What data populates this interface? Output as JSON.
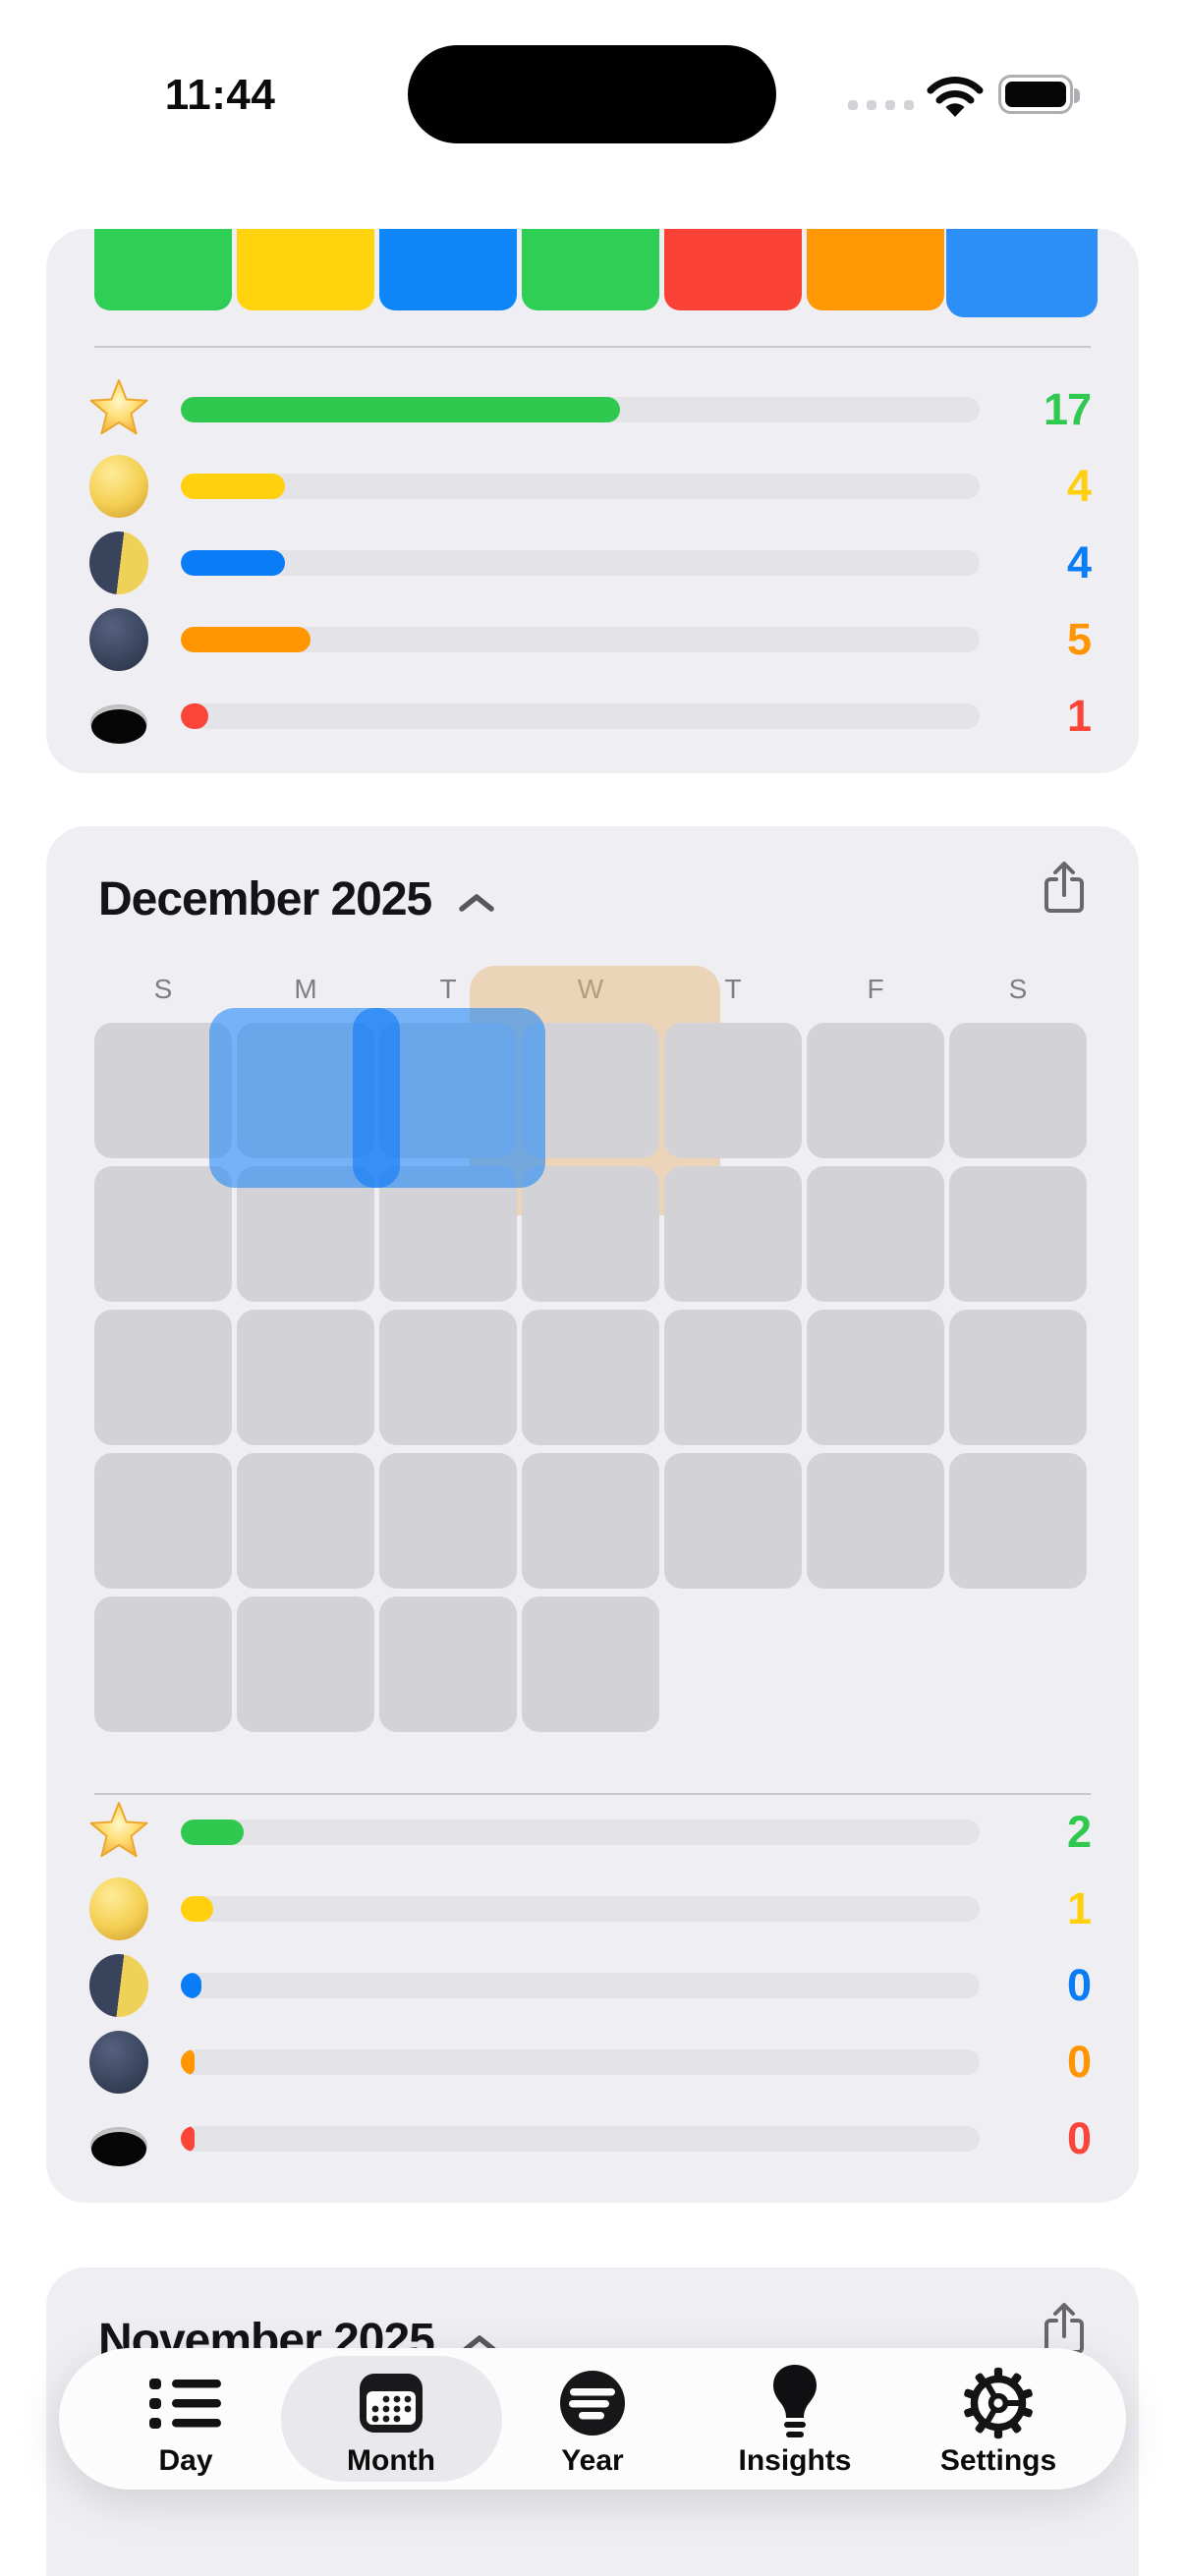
{
  "status_bar": {
    "time": "11:44"
  },
  "top_card": {
    "cell_colors": [
      "#2FCE55",
      "#FFD40E",
      "#0F86F8",
      "#2FCE55",
      "#FB4237",
      "#FF9803",
      "#2B8FF7"
    ],
    "stats": [
      {
        "icon": "star",
        "value": "17",
        "fraction": 0.55,
        "color": "#2FC94F"
      },
      {
        "icon": "full-moon",
        "value": "4",
        "fraction": 0.13,
        "color": "#FFD00D"
      },
      {
        "icon": "first-quarter-moon",
        "value": "4",
        "fraction": 0.13,
        "color": "#0A7CF6"
      },
      {
        "icon": "new-moon",
        "value": "5",
        "fraction": 0.162,
        "color": "#FF9500"
      },
      {
        "icon": "eclipse",
        "value": "1",
        "fraction": 0.034,
        "color": "#FA4538"
      }
    ]
  },
  "december": {
    "title": "December 2025",
    "weekdays": [
      "S",
      "M",
      "T",
      "W",
      "T",
      "F",
      "S"
    ],
    "row_cells": [
      7,
      7,
      7,
      7,
      4
    ],
    "overlays": {
      "tan": "rgba(231,185,124,0.5)",
      "blue": "rgba(18,129,250,0.55)",
      "blue_dark": "rgba(14,122,246,0.62)"
    },
    "stats": [
      {
        "icon": "star",
        "value": "2",
        "fraction": 0.079,
        "color": "#2FC94F"
      },
      {
        "icon": "full-moon",
        "value": "1",
        "fraction": 0.04,
        "color": "#FFD00D"
      },
      {
        "icon": "first-quarter-moon",
        "value": "0",
        "fraction": 0.026,
        "color": "#0A7CF6"
      },
      {
        "icon": "new-moon",
        "value": "0",
        "fraction": 0.017,
        "color": "#FF9500"
      },
      {
        "icon": "eclipse",
        "value": "0",
        "fraction": 0.017,
        "color": "#FA4538"
      }
    ]
  },
  "november": {
    "title": "November 2025"
  },
  "tab_bar": {
    "selected": "Month",
    "items": [
      {
        "label": "Day"
      },
      {
        "label": "Month"
      },
      {
        "label": "Year"
      },
      {
        "label": "Insights"
      },
      {
        "label": "Settings"
      }
    ]
  }
}
